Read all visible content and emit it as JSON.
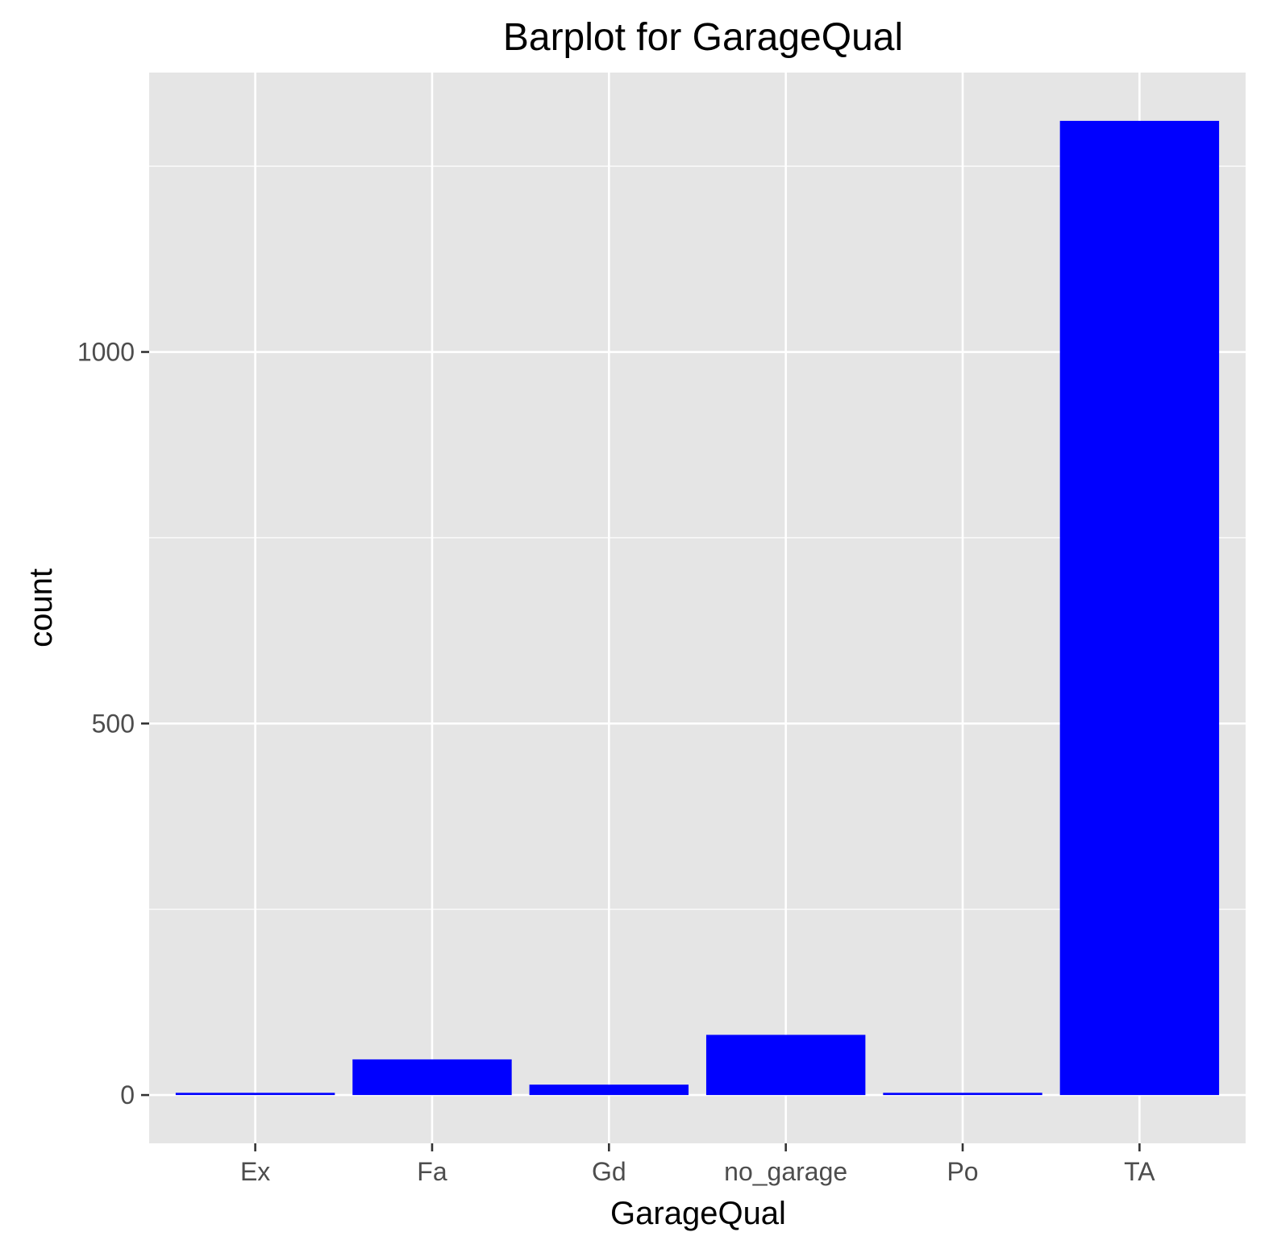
{
  "chart_data": {
    "type": "bar",
    "title": "Barplot for GarageQual",
    "xlabel": "GarageQual",
    "ylabel": "count",
    "categories": [
      "Ex",
      "Fa",
      "Gd",
      "no_garage",
      "Po",
      "TA"
    ],
    "values": [
      3,
      48,
      14,
      81,
      3,
      1311
    ],
    "ylim": [
      -65,
      1376
    ],
    "y_ticks": [
      0,
      500,
      1000
    ],
    "y_tick_labels": [
      "0",
      "500",
      "1000"
    ],
    "grid": true,
    "legend": "none",
    "colors": {
      "bar": "#0000ff",
      "panel_background": "#e5e5e5",
      "grid": "#ffffff",
      "tick": "#333333"
    }
  }
}
